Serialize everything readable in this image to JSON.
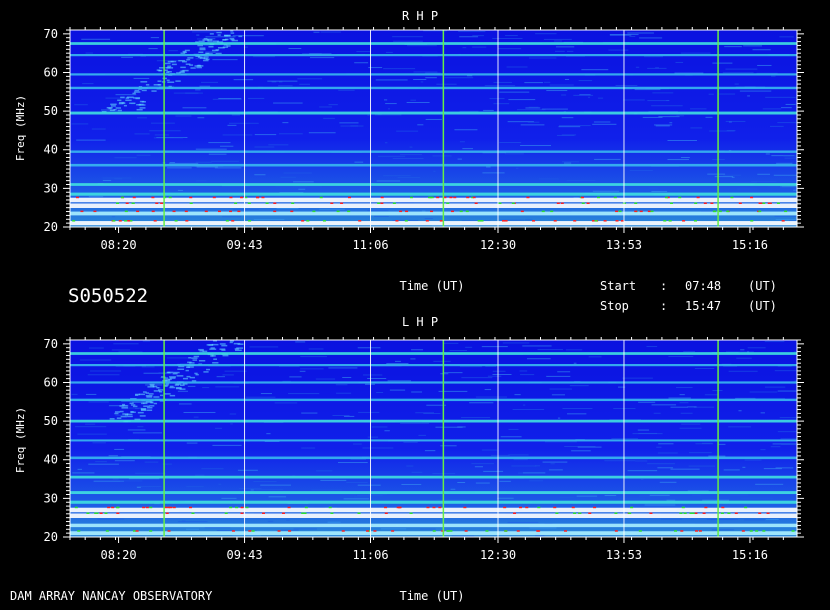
{
  "chart_data": {
    "type": "heatmap",
    "session_id": "S050522",
    "footer": "DAM ARRAY  NANCAY OBSERVATORY",
    "start_label": "Start",
    "start_sep": ":",
    "start_time": "07:48",
    "start_unit": "(UT)",
    "stop_label": "Stop",
    "stop_sep": ":",
    "stop_time": "15:47",
    "stop_unit": "(UT)",
    "colors": {
      "background": "#0b1cf0",
      "mid": "#2a7ce8",
      "grid": "#ffffff",
      "marker": "#66ee44"
    },
    "panels": [
      {
        "title": "R H P",
        "xlabel": "Time (UT)",
        "ylabel": "Freq (MHz)",
        "xlim": [
          "07:48",
          "15:47"
        ],
        "xticks": [
          "08:20",
          "09:43",
          "11:06",
          "12:30",
          "13:53",
          "15:16"
        ],
        "ylim": [
          20,
          71
        ],
        "yticks": [
          20,
          30,
          40,
          50,
          60,
          70
        ],
        "white_time_lines": [
          "09:43",
          "11:06",
          "12:30",
          "13:53"
        ],
        "green_time_lines": [
          "08:50",
          "11:54",
          "14:55"
        ],
        "bands": [
          {
            "freq": 21.0,
            "intensity": 0.9
          },
          {
            "freq": 23.5,
            "intensity": 0.8
          },
          {
            "freq": 25.5,
            "intensity": 1.0
          },
          {
            "freq": 27.0,
            "intensity": 1.0
          },
          {
            "freq": 28.5,
            "intensity": 0.6
          },
          {
            "freq": 31.0,
            "intensity": 0.5
          },
          {
            "freq": 36.0,
            "intensity": 0.45
          },
          {
            "freq": 39.5,
            "intensity": 0.4
          },
          {
            "freq": 49.5,
            "intensity": 0.55
          },
          {
            "freq": 56.0,
            "intensity": 0.4
          },
          {
            "freq": 59.5,
            "intensity": 0.35
          },
          {
            "freq": 64.5,
            "intensity": 0.35
          },
          {
            "freq": 67.5,
            "intensity": 0.5
          }
        ]
      },
      {
        "title": "L H P",
        "xlabel": "Time (UT)",
        "ylabel": "Freq (MHz)",
        "xlim": [
          "07:48",
          "15:47"
        ],
        "xticks": [
          "08:20",
          "09:43",
          "11:06",
          "12:30",
          "13:53",
          "15:16"
        ],
        "ylim": [
          20,
          71
        ],
        "yticks": [
          20,
          30,
          40,
          50,
          60,
          70
        ],
        "white_time_lines": [
          "09:43",
          "11:06",
          "12:30",
          "13:53"
        ],
        "green_time_lines": [
          "08:50",
          "11:54",
          "14:55"
        ],
        "bands": [
          {
            "freq": 21.0,
            "intensity": 0.8
          },
          {
            "freq": 23.0,
            "intensity": 0.7
          },
          {
            "freq": 25.5,
            "intensity": 1.0
          },
          {
            "freq": 27.0,
            "intensity": 1.0
          },
          {
            "freq": 29.0,
            "intensity": 0.6
          },
          {
            "freq": 31.5,
            "intensity": 0.55
          },
          {
            "freq": 35.5,
            "intensity": 0.5
          },
          {
            "freq": 40.5,
            "intensity": 0.45
          },
          {
            "freq": 45.0,
            "intensity": 0.3
          },
          {
            "freq": 50.0,
            "intensity": 0.5
          },
          {
            "freq": 55.5,
            "intensity": 0.4
          },
          {
            "freq": 60.0,
            "intensity": 0.35
          },
          {
            "freq": 64.5,
            "intensity": 0.35
          },
          {
            "freq": 67.5,
            "intensity": 0.5
          }
        ]
      }
    ]
  }
}
